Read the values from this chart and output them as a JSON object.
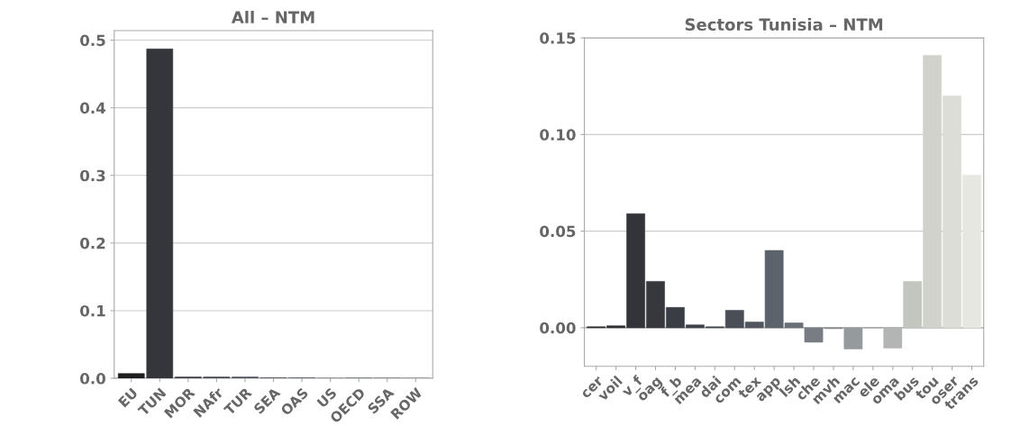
{
  "chart_data": [
    {
      "type": "bar",
      "title": "All – NTM",
      "categories": [
        "EU",
        "TUN",
        "MOR",
        "NAfr",
        "TUR",
        "SEA",
        "OAS",
        "US",
        "OECD",
        "SSA",
        "ROW"
      ],
      "values": [
        0.007,
        0.487,
        0.002,
        0.002,
        0.002,
        0.001,
        0.001,
        0,
        0.001,
        0.001,
        0.001
      ],
      "colors": [
        "#1f1f22",
        "#35363b",
        "#3d4048",
        "#464a53",
        "#50555e",
        "#5b6169",
        "#676d74",
        "#747a80",
        "#82878b",
        "#909497",
        "#9fa2a4"
      ],
      "ylim": [
        0,
        0.514
      ],
      "yticks": [
        {
          "value": 0,
          "label": "0.0"
        },
        0.1,
        0.2,
        0.3,
        0.4,
        0.5
      ],
      "grid": "y"
    },
    {
      "type": "bar",
      "title": "Sectors Tunisia – NTM",
      "categories": [
        "cer",
        "voil",
        "v_f",
        "oag",
        "f_b",
        "mea",
        "dai",
        "com",
        "tex",
        "app",
        "lsh",
        "che",
        "mvh",
        "mac",
        "ele",
        "oma",
        "bus",
        "tou",
        "oser",
        "trans"
      ],
      "values": [
        0.0005,
        0.001,
        0.059,
        0.024,
        0.0105,
        0.0015,
        0.0005,
        0.009,
        0.003,
        0.04,
        0.0025,
        -0.0075,
        -0.0005,
        -0.011,
        0,
        -0.0105,
        0.024,
        0.141,
        0.12,
        0.079
      ],
      "colors": [
        "#2c2d31",
        "#2f3035",
        "#33343a",
        "#36383e",
        "#3a3d44",
        "#3f424a",
        "#444850",
        "#4a4e57",
        "#51565e",
        "#5d636a",
        "#6a7076",
        "#777d82",
        "#858a8e",
        "#959a9c",
        "#a3a7a8",
        "#b2b5b3",
        "#c3c5bf",
        "#d1d2cc",
        "#dcddd6",
        "#e6e7e0"
      ],
      "ylim": [
        -0.02,
        0.15
      ],
      "yticks": [
        {
          "value": 0,
          "label": "0.00"
        },
        {
          "value": 0.05,
          "label": "0.05"
        },
        {
          "value": 0.1,
          "label": "0.10"
        },
        0.15
      ],
      "grid": "y"
    }
  ]
}
